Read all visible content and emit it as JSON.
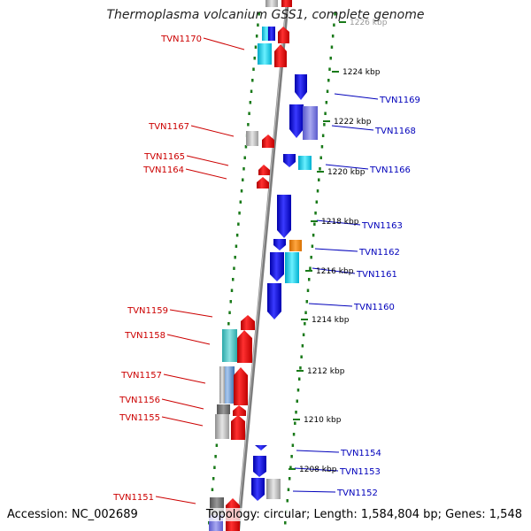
{
  "title": "Thermoplasma volcanium GSS1, complete genome",
  "colors": {
    "forward_label": "#cc0000",
    "reverse_label": "#0000bb",
    "tick": "#1a7a1a",
    "backbone": "#888888"
  },
  "scale_labels": [
    "1226 kbp",
    "1224 kbp",
    "1222 kbp",
    "1220 kbp",
    "1218 kbp",
    "1216 kbp",
    "1214 kbp",
    "1212 kbp",
    "1210 kbp",
    "1208 kbp"
  ],
  "genes_left": [
    "TVN1170",
    "TVN1167",
    "TVN1165",
    "TVN1164",
    "TVN1159",
    "TVN1158",
    "TVN1157",
    "TVN1156",
    "TVN1155",
    "TVN1151"
  ],
  "genes_right": [
    "TVN1169",
    "TVN1168",
    "TVN1166",
    "TVN1163",
    "TVN1162",
    "TVN1161",
    "TVN1160",
    "TVN1154",
    "TVN1153",
    "TVN1152"
  ],
  "footer": {
    "accession": "Accession: NC_002689",
    "topology": "Topology: circular; Length: 1,584,804 bp; Genes: 1,548"
  }
}
